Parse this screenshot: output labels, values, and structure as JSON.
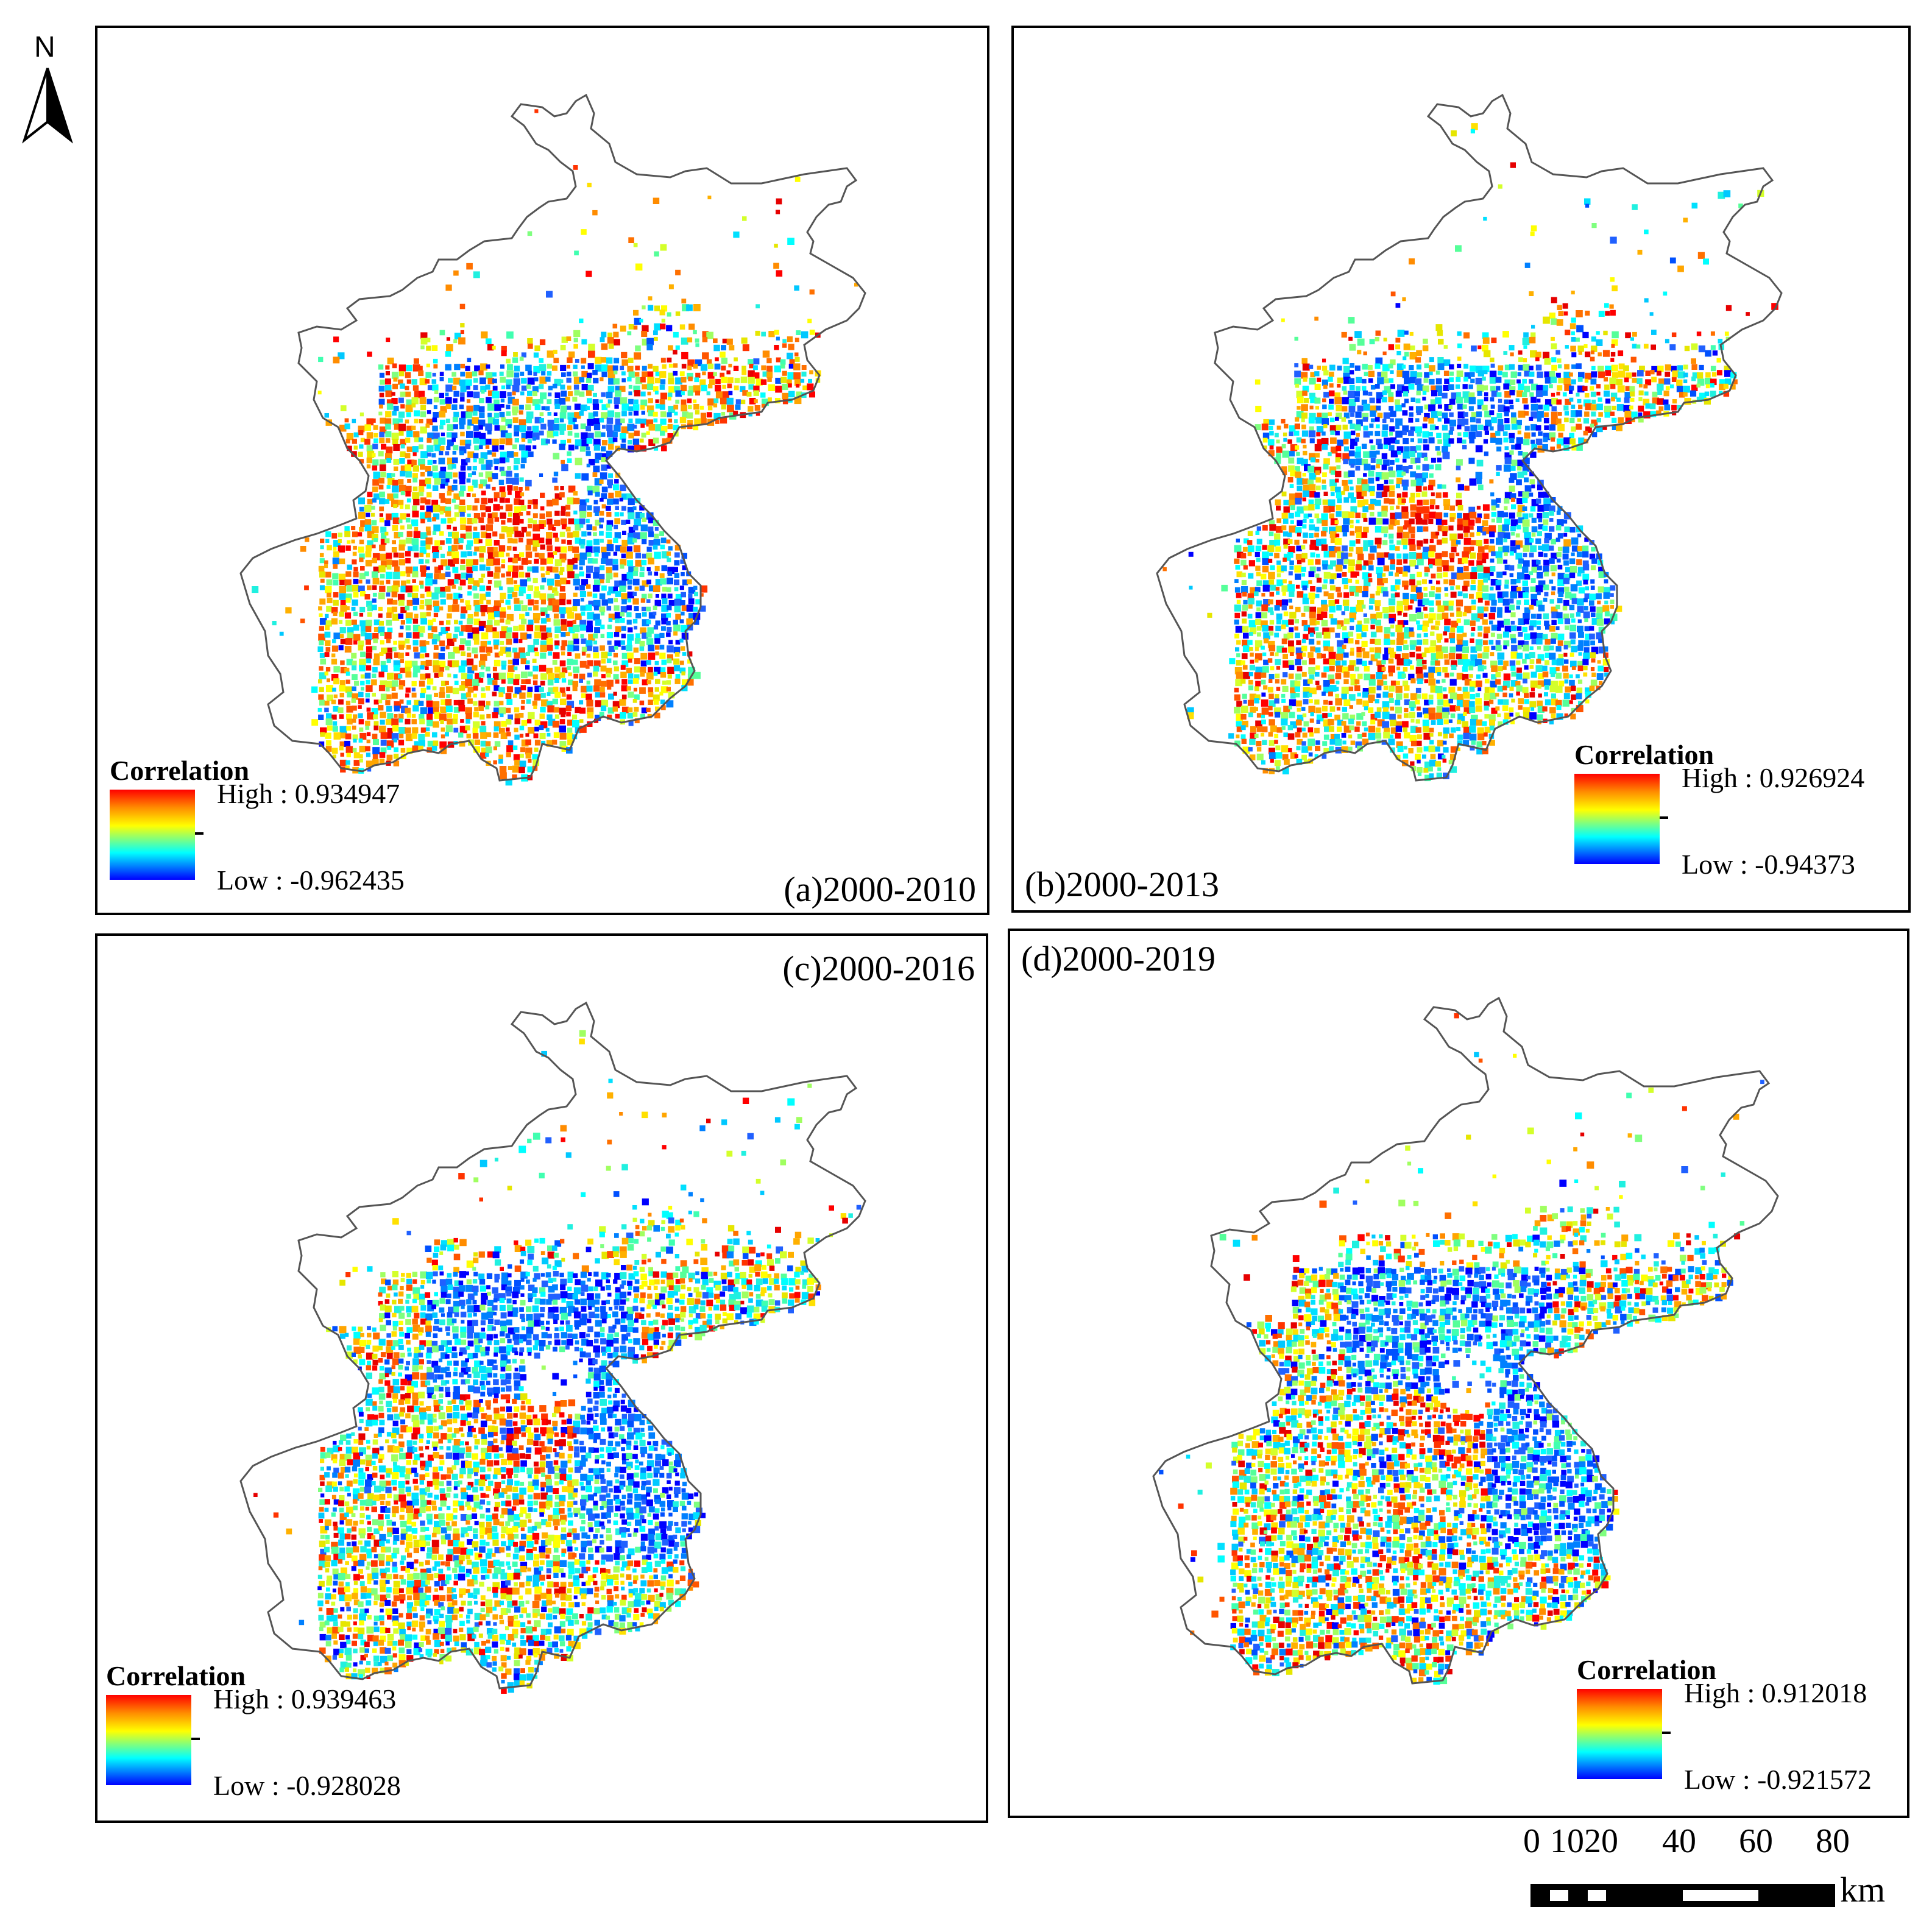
{
  "north_arrow": {
    "label": "N"
  },
  "panels": [
    {
      "id": "a",
      "label": "(a)2000-2010",
      "legend_title": "Correlation",
      "high": "High : 0.934947",
      "low": "Low : -0.962435"
    },
    {
      "id": "b",
      "label": "(b)2000-2013",
      "legend_title": "Correlation",
      "high": "High : 0.926924",
      "low": "Low : -0.94373"
    },
    {
      "id": "c",
      "label": "(c)2000-2016",
      "legend_title": "Correlation",
      "high": "High : 0.939463",
      "low": "Low : -0.928028"
    },
    {
      "id": "d",
      "label": "(d)2000-2019",
      "legend_title": "Correlation",
      "high": "High : 0.912018",
      "low": "Low : -0.921572"
    }
  ],
  "scale_bar": {
    "tick_labels": [
      "0",
      "10",
      "20",
      "40",
      "60",
      "80"
    ],
    "unit": "km"
  },
  "colors": {
    "ramp_high": "#ff0000",
    "ramp_mid": "#ffff00",
    "ramp_low": "#0000ff",
    "boundary": "#555555"
  }
}
